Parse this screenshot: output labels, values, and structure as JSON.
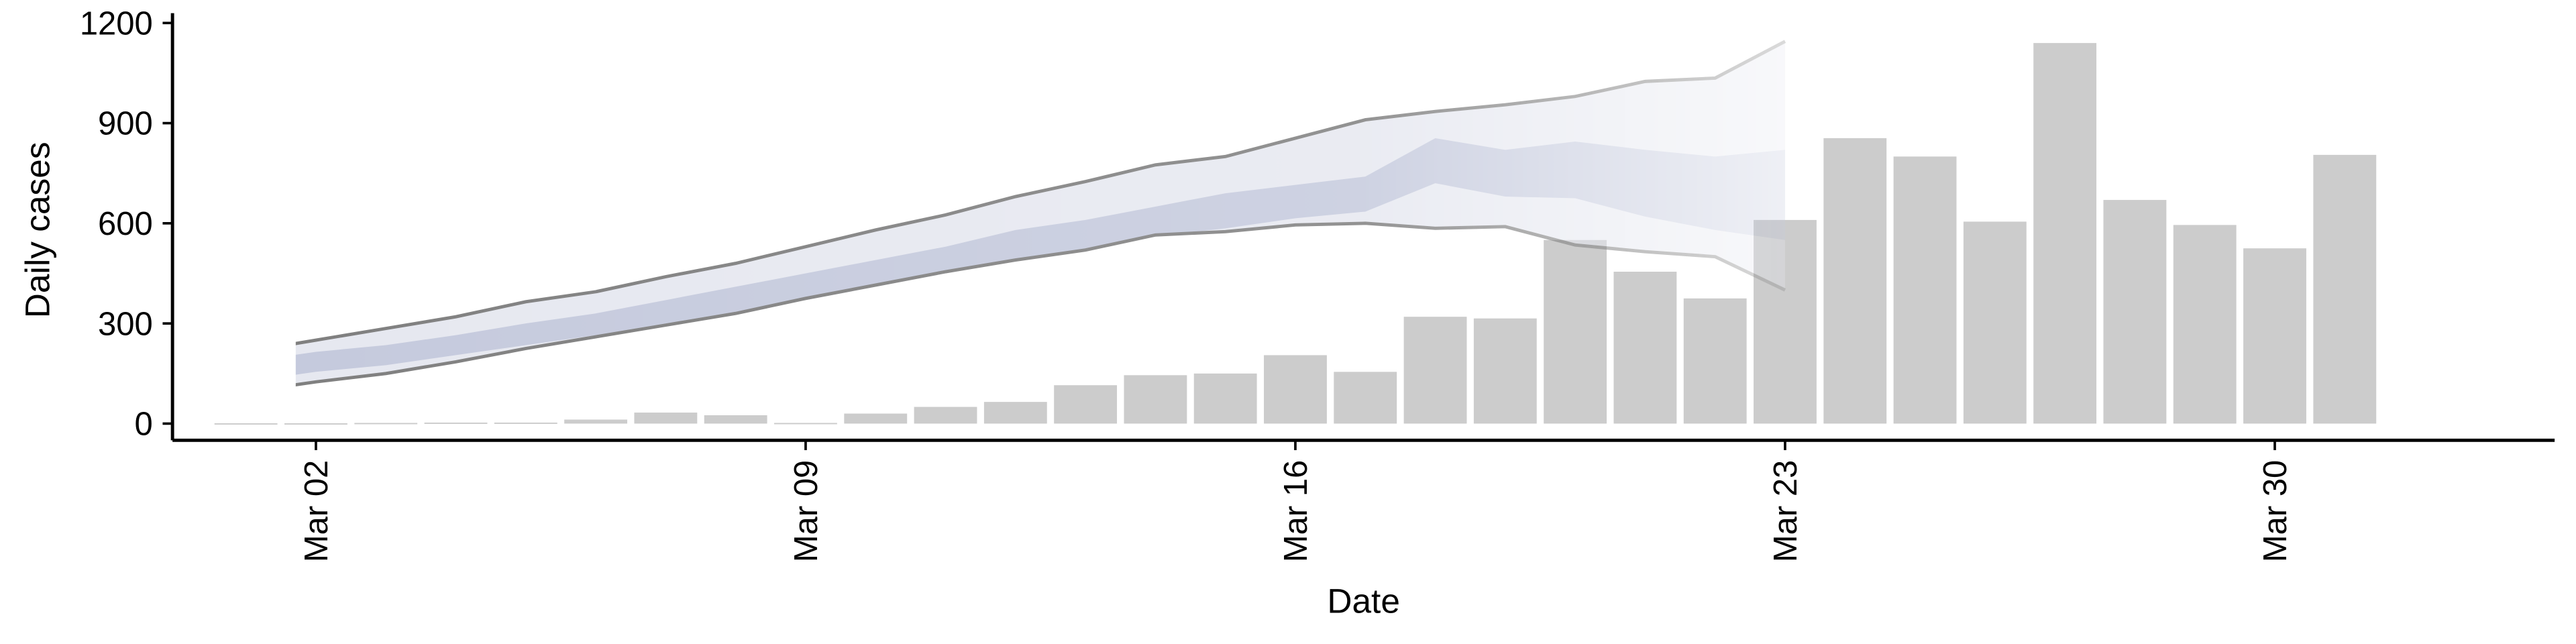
{
  "chart_data": {
    "type": "bar",
    "x_label": "Date",
    "y_label": "Daily cases",
    "x": [
      1,
      2,
      3,
      4,
      5,
      6,
      7,
      8,
      9,
      10,
      11,
      12,
      13,
      14,
      15,
      16,
      17,
      18,
      19,
      20,
      21,
      22,
      23,
      24,
      25,
      26,
      27,
      28,
      29,
      30,
      31
    ],
    "values": [
      1,
      1,
      2,
      3,
      3,
      12,
      33,
      25,
      2,
      30,
      50,
      65,
      115,
      145,
      150,
      205,
      155,
      320,
      315,
      550,
      455,
      375,
      610,
      855,
      800,
      605,
      1140,
      670,
      595,
      525,
      805
    ],
    "color": "#cccccc",
    "ribbon": {
      "x": [
        1,
        2,
        3,
        4,
        5,
        6,
        7,
        8,
        9,
        10,
        11,
        12,
        13,
        14,
        15,
        16,
        17,
        18,
        19,
        20,
        21,
        22,
        23
      ],
      "outer_upper": [
        215,
        250,
        285,
        320,
        365,
        395,
        440,
        480,
        530,
        580,
        625,
        680,
        725,
        775,
        800,
        855,
        910,
        935,
        955,
        980,
        1025,
        1035,
        1145
      ],
      "outer_lower": [
        95,
        125,
        150,
        185,
        225,
        260,
        295,
        330,
        375,
        415,
        455,
        490,
        520,
        565,
        575,
        595,
        600,
        585,
        590,
        535,
        515,
        500,
        400
      ],
      "inner_upper": [
        185,
        215,
        235,
        265,
        300,
        330,
        370,
        410,
        450,
        490,
        530,
        580,
        610,
        650,
        690,
        715,
        740,
        855,
        820,
        845,
        820,
        800,
        820
      ],
      "inner_lower": [
        125,
        155,
        175,
        205,
        235,
        265,
        300,
        335,
        370,
        410,
        450,
        490,
        520,
        560,
        585,
        615,
        635,
        720,
        680,
        675,
        620,
        580,
        550
      ],
      "outer_color": "#e6e8f0",
      "inner_color": "#c5cadd",
      "line_color": "#7f7f7f"
    },
    "xlim": [
      -0.05,
      34
    ],
    "xticks": [
      {
        "value": 2,
        "label": "Mar 02"
      },
      {
        "value": 9,
        "label": "Mar 09"
      },
      {
        "value": 16,
        "label": "Mar 16"
      },
      {
        "value": 23,
        "label": "Mar 23"
      },
      {
        "value": 30,
        "label": "Mar 30"
      }
    ],
    "ylim": [
      -50,
      1200
    ],
    "yticks": [
      0,
      300,
      600,
      900,
      1200
    ]
  }
}
